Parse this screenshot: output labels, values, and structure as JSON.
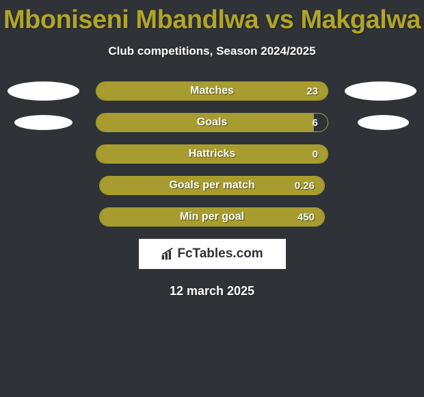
{
  "title_color": "#b1a528",
  "title_text": "Mboniseni Mbandlwa vs Makgalwa",
  "subtitle_text": "Club competitions, Season 2024/2025",
  "border_color": "#b1a528",
  "fill_color": "#a79c2f",
  "logo_text": "FcTables.com",
  "date_text": "12 march 2025",
  "rows": [
    {
      "label": "Matches",
      "value": "23",
      "fill_pct": 100,
      "left_ellipse": "big",
      "right_ellipse": "big",
      "bar_short": false
    },
    {
      "label": "Goals",
      "value": "6",
      "fill_pct": 94,
      "left_ellipse": "mid",
      "right_ellipse": "off",
      "bar_short": false
    },
    {
      "label": "Hattricks",
      "value": "0",
      "fill_pct": 100,
      "left_ellipse": null,
      "right_ellipse": null,
      "bar_short": false
    },
    {
      "label": "Goals per match",
      "value": "0.26",
      "fill_pct": 100,
      "left_ellipse": null,
      "right_ellipse": null,
      "bar_short": true
    },
    {
      "label": "Min per goal",
      "value": "450",
      "fill_pct": 100,
      "left_ellipse": null,
      "right_ellipse": null,
      "bar_short": true
    }
  ]
}
